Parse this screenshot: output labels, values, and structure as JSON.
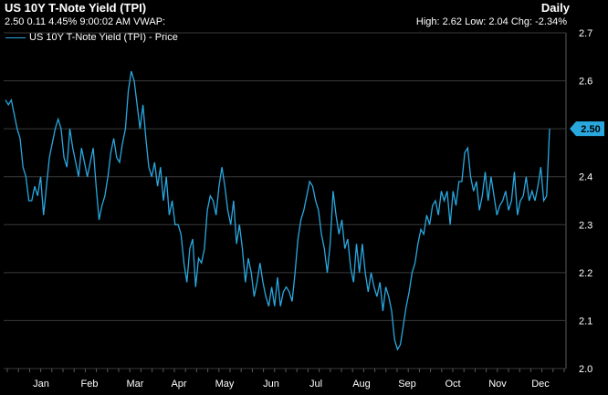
{
  "header": {
    "title": "US 10Y T-Note Yield (TPI)",
    "subtitle": "2.50 0.11 4.45% 9:00:02 AM VWAP:",
    "frequency": "Daily",
    "stats": "High: 2.62 Low: 2.04 Chg: -2.34%"
  },
  "legend": {
    "label": "US 10Y T-Note Yield (TPI) - Price"
  },
  "colors": {
    "line": "#29a8e0",
    "background": "#000000",
    "grid": "#3a3a3a",
    "last_badge": "#29a8e0"
  },
  "chart_data": {
    "type": "line",
    "x_ticks": [
      "Jan",
      "Feb",
      "Mar",
      "Apr",
      "May",
      "Jun",
      "Jul",
      "Aug",
      "Sep",
      "Oct",
      "Nov",
      "Dec"
    ],
    "y_ticks": [
      "2.0",
      "2.1",
      "2.2",
      "2.3",
      "2.4",
      "2.5",
      "2.6",
      "2.7"
    ],
    "ylim": [
      2.0,
      2.7
    ],
    "grid": true,
    "last_value_label": "2.50",
    "series": [
      {
        "values": [
          2.56,
          2.55,
          2.56,
          2.53,
          2.5,
          2.48,
          2.42,
          2.4,
          2.35,
          2.35,
          2.38,
          2.36,
          2.4,
          2.32,
          2.38,
          2.44,
          2.47,
          2.5,
          2.52,
          2.5,
          2.44,
          2.42,
          2.5,
          2.46,
          2.43,
          2.4,
          2.46,
          2.43,
          2.4,
          2.43,
          2.46,
          2.38,
          2.31,
          2.34,
          2.36,
          2.4,
          2.45,
          2.48,
          2.44,
          2.43,
          2.47,
          2.5,
          2.58,
          2.62,
          2.6,
          2.55,
          2.5,
          2.55,
          2.48,
          2.42,
          2.4,
          2.43,
          2.38,
          2.42,
          2.35,
          2.4,
          2.32,
          2.35,
          2.3,
          2.3,
          2.28,
          2.22,
          2.18,
          2.25,
          2.27,
          2.17,
          2.23,
          2.22,
          2.25,
          2.33,
          2.36,
          2.35,
          2.32,
          2.38,
          2.42,
          2.38,
          2.33,
          2.3,
          2.35,
          2.26,
          2.3,
          2.25,
          2.18,
          2.23,
          2.2,
          2.15,
          2.18,
          2.22,
          2.18,
          2.15,
          2.13,
          2.17,
          2.13,
          2.19,
          2.13,
          2.16,
          2.17,
          2.16,
          2.14,
          2.2,
          2.27,
          2.31,
          2.33,
          2.36,
          2.39,
          2.38,
          2.35,
          2.33,
          2.28,
          2.25,
          2.2,
          2.26,
          2.37,
          2.32,
          2.28,
          2.31,
          2.25,
          2.27,
          2.21,
          2.18,
          2.26,
          2.2,
          2.26,
          2.2,
          2.16,
          2.2,
          2.17,
          2.15,
          2.18,
          2.12,
          2.17,
          2.15,
          2.12,
          2.06,
          2.04,
          2.05,
          2.09,
          2.13,
          2.16,
          2.2,
          2.22,
          2.26,
          2.29,
          2.28,
          2.32,
          2.3,
          2.34,
          2.35,
          2.32,
          2.37,
          2.35,
          2.37,
          2.3,
          2.37,
          2.34,
          2.39,
          2.39,
          2.45,
          2.46,
          2.4,
          2.37,
          2.39,
          2.33,
          2.36,
          2.41,
          2.35,
          2.4,
          2.36,
          2.32,
          2.34,
          2.35,
          2.37,
          2.33,
          2.35,
          2.41,
          2.32,
          2.35,
          2.36,
          2.4,
          2.35,
          2.37,
          2.35,
          2.38,
          2.42,
          2.35,
          2.36,
          2.5
        ]
      }
    ]
  }
}
